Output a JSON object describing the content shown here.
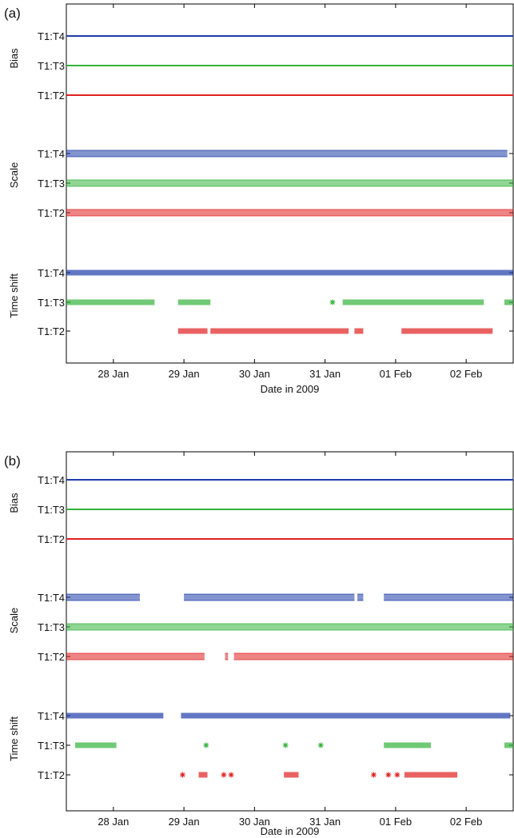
{
  "chart_data": [
    {
      "type": "scatter",
      "panel_label": "(a)",
      "xlabel": "Date in 2009",
      "x_ticks": [
        "28 Jan",
        "29 Jan",
        "30 Jan",
        "31 Jan",
        "01 Feb",
        "02 Feb"
      ],
      "xlim": [
        "2009-01-27 08:00",
        "2009-02-02 16:00"
      ],
      "groups": [
        {
          "name": "Bias",
          "rows": [
            {
              "label": "T1:T4",
              "color": "#1f3da8",
              "marker": "line",
              "segments": [
                [
                  "2009-01-27 08:00",
                  "2009-02-02 16:00"
                ]
              ]
            },
            {
              "label": "T1:T3",
              "color": "#33b23a",
              "marker": "line",
              "segments": [
                [
                  "2009-01-27 08:00",
                  "2009-02-02 16:00"
                ]
              ]
            },
            {
              "label": "T1:T2",
              "color": "#e02020",
              "marker": "line",
              "segments": [
                [
                  "2009-01-27 08:00",
                  "2009-02-02 16:00"
                ]
              ]
            }
          ]
        },
        {
          "name": "Scale",
          "rows": [
            {
              "label": "T1:T4",
              "color": "#1f3da8",
              "marker": "triangle",
              "segments": [
                [
                  "2009-01-27 08:00",
                  "2009-02-02 14:00"
                ]
              ]
            },
            {
              "label": "T1:T3",
              "color": "#33b23a",
              "marker": "triangle",
              "segments": [
                [
                  "2009-01-27 08:00",
                  "2009-02-02 16:00"
                ]
              ]
            },
            {
              "label": "T1:T2",
              "color": "#e02020",
              "marker": "triangle",
              "segments": [
                [
                  "2009-01-27 08:00",
                  "2009-02-02 16:00"
                ]
              ]
            }
          ]
        },
        {
          "name": "Time shift",
          "rows": [
            {
              "label": "T1:T4",
              "color": "#1f3da8",
              "marker": "star",
              "segments": [
                [
                  "2009-01-27 08:00",
                  "2009-02-02 16:00"
                ]
              ]
            },
            {
              "label": "T1:T3",
              "color": "#33b23a",
              "marker": "star",
              "segments": [
                [
                  "2009-01-27 08:00",
                  "2009-01-28 14:00"
                ],
                [
                  "2009-01-28 22:00",
                  "2009-01-29 09:00"
                ],
                [
                  "2009-01-31 02:00",
                  "2009-01-31 02:30"
                ],
                [
                  "2009-01-31 06:00",
                  "2009-02-02 06:00"
                ],
                [
                  "2009-02-02 13:00",
                  "2009-02-02 16:00"
                ]
              ]
            },
            {
              "label": "T1:T2",
              "color": "#e02020",
              "marker": "star",
              "segments": [
                [
                  "2009-01-28 22:00",
                  "2009-01-29 08:00"
                ],
                [
                  "2009-01-29 09:00",
                  "2009-01-31 08:00"
                ],
                [
                  "2009-01-31 10:00",
                  "2009-01-31 13:00"
                ],
                [
                  "2009-02-01 02:00",
                  "2009-02-02 09:00"
                ]
              ]
            }
          ]
        }
      ]
    },
    {
      "type": "scatter",
      "panel_label": "(b)",
      "xlabel": "Date in 2009",
      "x_ticks": [
        "28 Jan",
        "29 Jan",
        "30 Jan",
        "31 Jan",
        "01 Feb",
        "02 Feb"
      ],
      "xlim": [
        "2009-01-27 08:00",
        "2009-02-02 16:00"
      ],
      "groups": [
        {
          "name": "Bias",
          "rows": [
            {
              "label": "T1:T4",
              "color": "#1f3da8",
              "marker": "line",
              "segments": [
                [
                  "2009-01-27 08:00",
                  "2009-02-02 16:00"
                ]
              ]
            },
            {
              "label": "T1:T3",
              "color": "#33b23a",
              "marker": "line",
              "segments": [
                [
                  "2009-01-27 08:00",
                  "2009-02-02 16:00"
                ]
              ]
            },
            {
              "label": "T1:T2",
              "color": "#e02020",
              "marker": "line",
              "segments": [
                [
                  "2009-01-27 08:00",
                  "2009-02-02 16:00"
                ]
              ]
            }
          ]
        },
        {
          "name": "Scale",
          "rows": [
            {
              "label": "T1:T4",
              "color": "#1f3da8",
              "marker": "triangle",
              "segments": [
                [
                  "2009-01-27 08:00",
                  "2009-01-28 09:00"
                ],
                [
                  "2009-01-29 00:00",
                  "2009-01-31 10:00"
                ],
                [
                  "2009-01-31 11:00",
                  "2009-01-31 13:00"
                ],
                [
                  "2009-01-31 20:00",
                  "2009-02-02 16:00"
                ]
              ]
            },
            {
              "label": "T1:T3",
              "color": "#33b23a",
              "marker": "triangle",
              "segments": [
                [
                  "2009-01-27 08:00",
                  "2009-02-02 16:00"
                ]
              ]
            },
            {
              "label": "T1:T2",
              "color": "#e02020",
              "marker": "triangle",
              "segments": [
                [
                  "2009-01-27 08:00",
                  "2009-01-29 07:00"
                ],
                [
                  "2009-01-29 14:00",
                  "2009-01-29 15:00"
                ],
                [
                  "2009-01-29 17:00",
                  "2009-02-02 16:00"
                ]
              ]
            }
          ]
        },
        {
          "name": "Time shift",
          "rows": [
            {
              "label": "T1:T4",
              "color": "#1f3da8",
              "marker": "star",
              "segments": [
                [
                  "2009-01-27 08:00",
                  "2009-01-28 17:00"
                ],
                [
                  "2009-01-28 23:00",
                  "2009-02-02 15:00"
                ]
              ]
            },
            {
              "label": "T1:T3",
              "color": "#33b23a",
              "marker": "star",
              "segments": [
                [
                  "2009-01-27 11:00",
                  "2009-01-28 01:00"
                ],
                [
                  "2009-01-29 07:00",
                  "2009-01-29 08:00"
                ],
                [
                  "2009-01-30 10:00",
                  "2009-01-30 10:30"
                ],
                [
                  "2009-01-30 22:00",
                  "2009-01-30 22:30"
                ],
                [
                  "2009-01-31 20:00",
                  "2009-02-01 12:00"
                ],
                [
                  "2009-02-02 13:00",
                  "2009-02-02 16:00"
                ]
              ]
            },
            {
              "label": "T1:T2",
              "color": "#e02020",
              "marker": "star",
              "segments": [
                [
                  "2009-01-28 23:00",
                  "2009-01-28 23:30"
                ],
                [
                  "2009-01-29 05:00",
                  "2009-01-29 08:00"
                ],
                [
                  "2009-01-29 13:00",
                  "2009-01-29 14:00"
                ],
                [
                  "2009-01-29 15:30",
                  "2009-01-29 16:00"
                ],
                [
                  "2009-01-30 10:00",
                  "2009-01-30 15:00"
                ],
                [
                  "2009-01-31 16:00",
                  "2009-01-31 17:00"
                ],
                [
                  "2009-01-31 21:00",
                  "2009-01-31 22:00"
                ],
                [
                  "2009-02-01 00:00",
                  "2009-02-01 01:00"
                ],
                [
                  "2009-02-01 03:00",
                  "2009-02-01 21:00"
                ]
              ]
            }
          ]
        }
      ]
    }
  ]
}
